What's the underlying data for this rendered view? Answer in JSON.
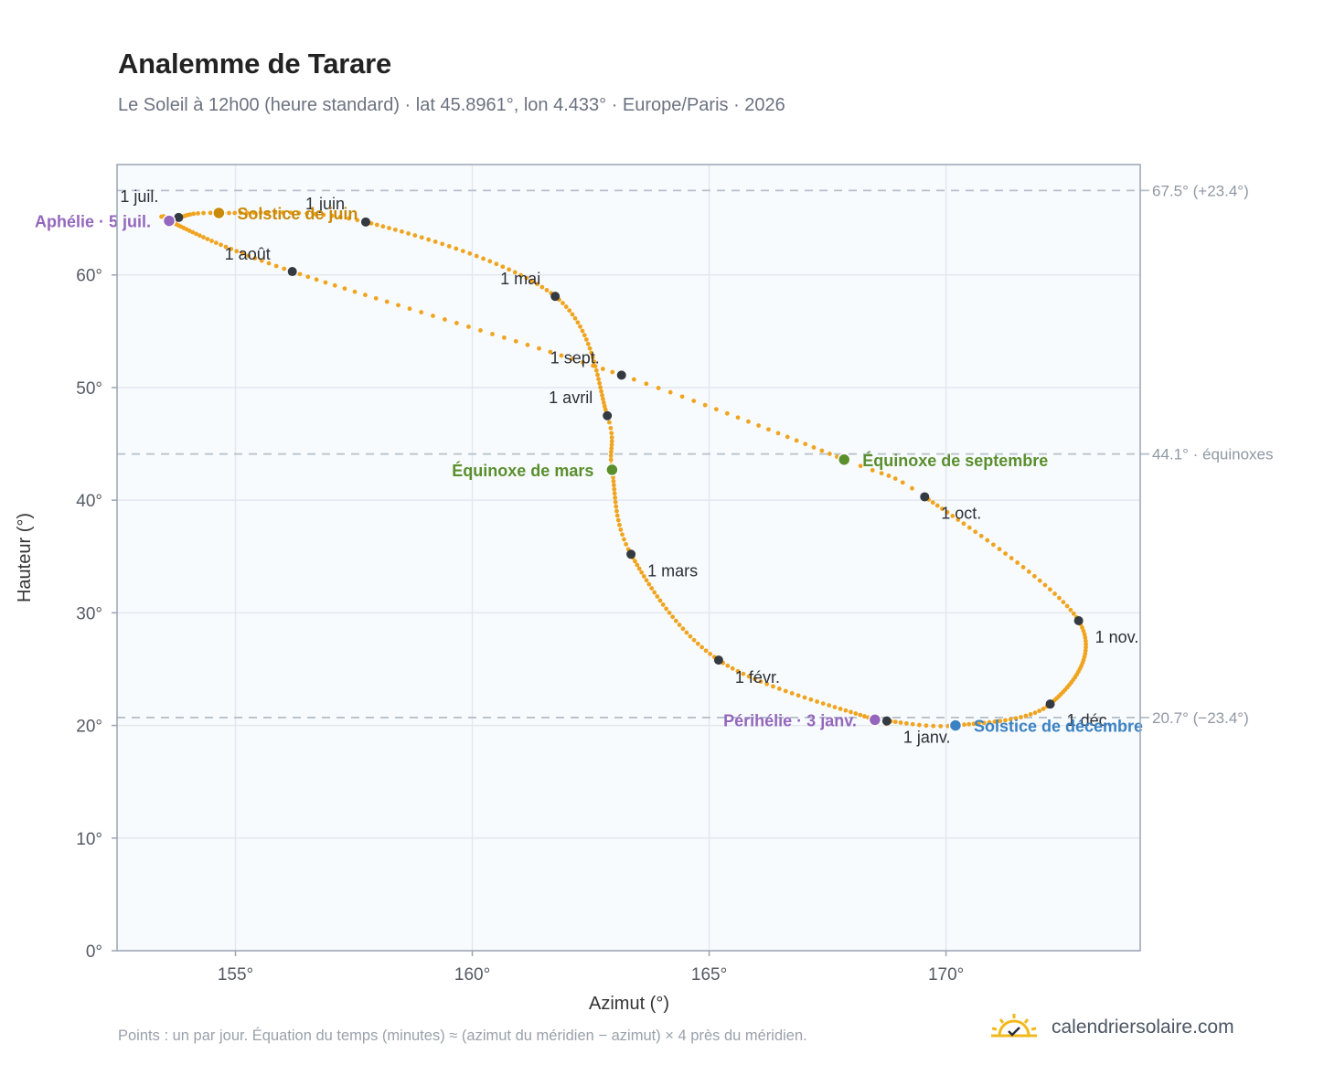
{
  "header": {
    "title": "Analemme de Tarare",
    "subtitle": "Le Soleil à 12h00 (heure standard) · lat 45.8961°, lon 4.433° · Europe/Paris · 2026"
  },
  "footer": {
    "note": "Points : un par jour. Équation du temps (minutes) ≈ (azimut du méridien − azimut) × 4 près du méridien.",
    "brand": "calendriersolaire.com"
  },
  "colors": {
    "curve": "#f0a41f",
    "month_dot": "#343a42",
    "aphelion": "#9467bd",
    "perihelion": "#9467bd",
    "solstice_june": "#c98a0b",
    "solstice_december": "#3b82c4",
    "equinox": "#5a8f2e",
    "plot_background": "#f8fbfd",
    "grid": "#e3e8ee",
    "reference_line": "#b6c0ca",
    "frame": "#9aa5b4"
  },
  "chart_data": {
    "type": "scatter",
    "xlabel": "Azimut (°)",
    "ylabel": "Hauteur (°)",
    "xlim": [
      152.5,
      174.1
    ],
    "ylim": [
      0,
      69.8
    ],
    "x_ticks": [
      {
        "value": 155,
        "label": "155°"
      },
      {
        "value": 160,
        "label": "160°"
      },
      {
        "value": 165,
        "label": "165°"
      },
      {
        "value": 170,
        "label": "170°"
      }
    ],
    "y_ticks": [
      {
        "value": 0,
        "label": "0°"
      },
      {
        "value": 10,
        "label": "10°"
      },
      {
        "value": 20,
        "label": "20°"
      },
      {
        "value": 30,
        "label": "30°"
      },
      {
        "value": 40,
        "label": "40°"
      },
      {
        "value": 50,
        "label": "50°"
      },
      {
        "value": 60,
        "label": "60°"
      }
    ],
    "grid": true,
    "reference_lines": [
      {
        "altitude": 67.5,
        "label": "67.5° (+23.4°)"
      },
      {
        "altitude": 44.1,
        "label": "44.1° · équinoxes"
      },
      {
        "altitude": 20.7,
        "label": "20.7° (−23.4°)"
      }
    ],
    "month_markers": [
      {
        "label": "1 janv.",
        "day": 1,
        "azimuth": 168.75,
        "altitude": 20.4
      },
      {
        "label": "1 févr.",
        "day": 32,
        "azimuth": 165.2,
        "altitude": 25.8
      },
      {
        "label": "1 mars",
        "day": 60,
        "azimuth": 163.35,
        "altitude": 35.2
      },
      {
        "label": "1 avril",
        "day": 91,
        "azimuth": 162.85,
        "altitude": 47.5
      },
      {
        "label": "1 mai",
        "day": 121,
        "azimuth": 161.75,
        "altitude": 58.1
      },
      {
        "label": "1 juin",
        "day": 152,
        "azimuth": 157.75,
        "altitude": 64.7
      },
      {
        "label": "1 juil.",
        "day": 182,
        "azimuth": 153.8,
        "altitude": 65.1
      },
      {
        "label": "1 août",
        "day": 213,
        "azimuth": 156.2,
        "altitude": 60.3
      },
      {
        "label": "1 sept.",
        "day": 244,
        "azimuth": 163.15,
        "altitude": 51.1
      },
      {
        "label": "1 oct.",
        "day": 274,
        "azimuth": 169.55,
        "altitude": 40.3
      },
      {
        "label": "1 nov.",
        "day": 305,
        "azimuth": 172.8,
        "altitude": 29.3
      },
      {
        "label": "1 déc.",
        "day": 335,
        "azimuth": 172.2,
        "altitude": 21.9
      }
    ],
    "events": [
      {
        "label": "Périhélie · 3 janv.",
        "day": 3,
        "azimuth": 168.5,
        "altitude": 20.5,
        "color_key": "perihelion"
      },
      {
        "label": "Équinoxe de mars",
        "day": 79,
        "azimuth": 162.95,
        "altitude": 42.7,
        "color_key": "equinox"
      },
      {
        "label": "Solstice de juin",
        "day": 172,
        "azimuth": 154.65,
        "altitude": 65.5,
        "color_key": "solstice_june"
      },
      {
        "label": "Aphélie · 5 juil.",
        "day": 186,
        "azimuth": 153.6,
        "altitude": 64.8,
        "color_key": "aphelion"
      },
      {
        "label": "Équinoxe de septembre",
        "day": 266,
        "azimuth": 167.85,
        "altitude": 43.6,
        "color_key": "equinox"
      },
      {
        "label": "Solstice de décembre",
        "day": 355,
        "azimuth": 170.2,
        "altitude": 20.0,
        "color_key": "solstice_december"
      }
    ],
    "series": [
      {
        "points_per_day": 1,
        "days_in_year": 365,
        "azimuth_altitude_by_day": [
          [
            1,
            168.75,
            20.4
          ],
          [
            3,
            168.5,
            20.5
          ],
          [
            32,
            165.2,
            25.8
          ],
          [
            60,
            163.35,
            35.2
          ],
          [
            79,
            162.95,
            42.7
          ],
          [
            91,
            162.85,
            47.5
          ],
          [
            121,
            161.75,
            58.1
          ],
          [
            152,
            157.75,
            64.7
          ],
          [
            172,
            154.65,
            65.5
          ],
          [
            182,
            153.8,
            65.1
          ],
          [
            186,
            153.6,
            64.8
          ],
          [
            213,
            156.2,
            60.3
          ],
          [
            244,
            163.15,
            51.1
          ],
          [
            266,
            167.85,
            43.6
          ],
          [
            274,
            169.55,
            40.3
          ],
          [
            305,
            172.8,
            29.3
          ],
          [
            335,
            172.2,
            21.9
          ],
          [
            355,
            170.2,
            20.0
          ],
          [
            366,
            168.75,
            20.4
          ]
        ]
      }
    ]
  }
}
